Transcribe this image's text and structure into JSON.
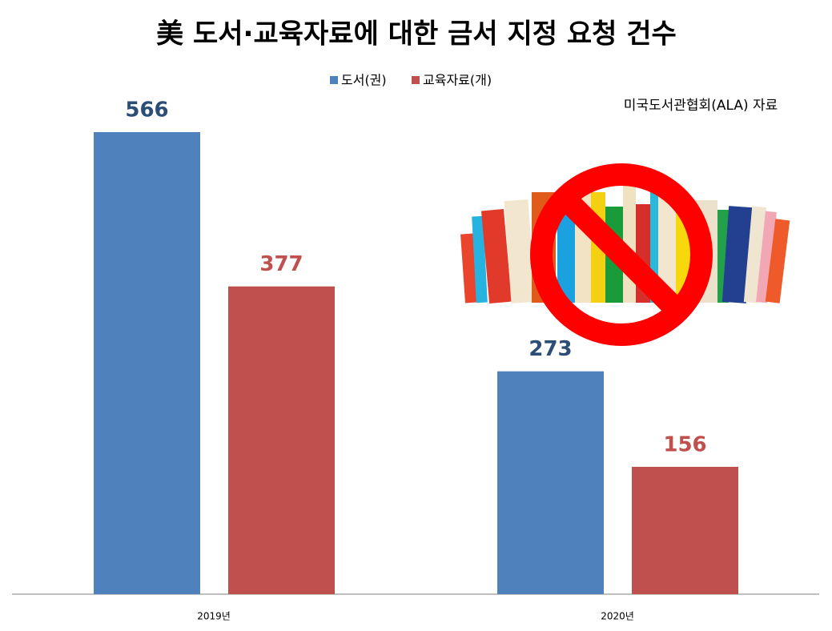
{
  "chart_data": {
    "type": "bar",
    "title": "美 도서·교육자료에 대한 금서 지정 요청 건수",
    "annotation": "미국도서관협회(ALA) 자료",
    "categories": [
      "2019년",
      "2020년"
    ],
    "series": [
      {
        "name": "도서(권)",
        "color": "#4f81bd",
        "label_color": "#2c4d75",
        "values": [
          566,
          273
        ]
      },
      {
        "name": "교육자료(개)",
        "color": "#c0504d",
        "label_color": "#c0504d",
        "values": [
          377,
          156
        ]
      }
    ],
    "legend": "top"
  }
}
